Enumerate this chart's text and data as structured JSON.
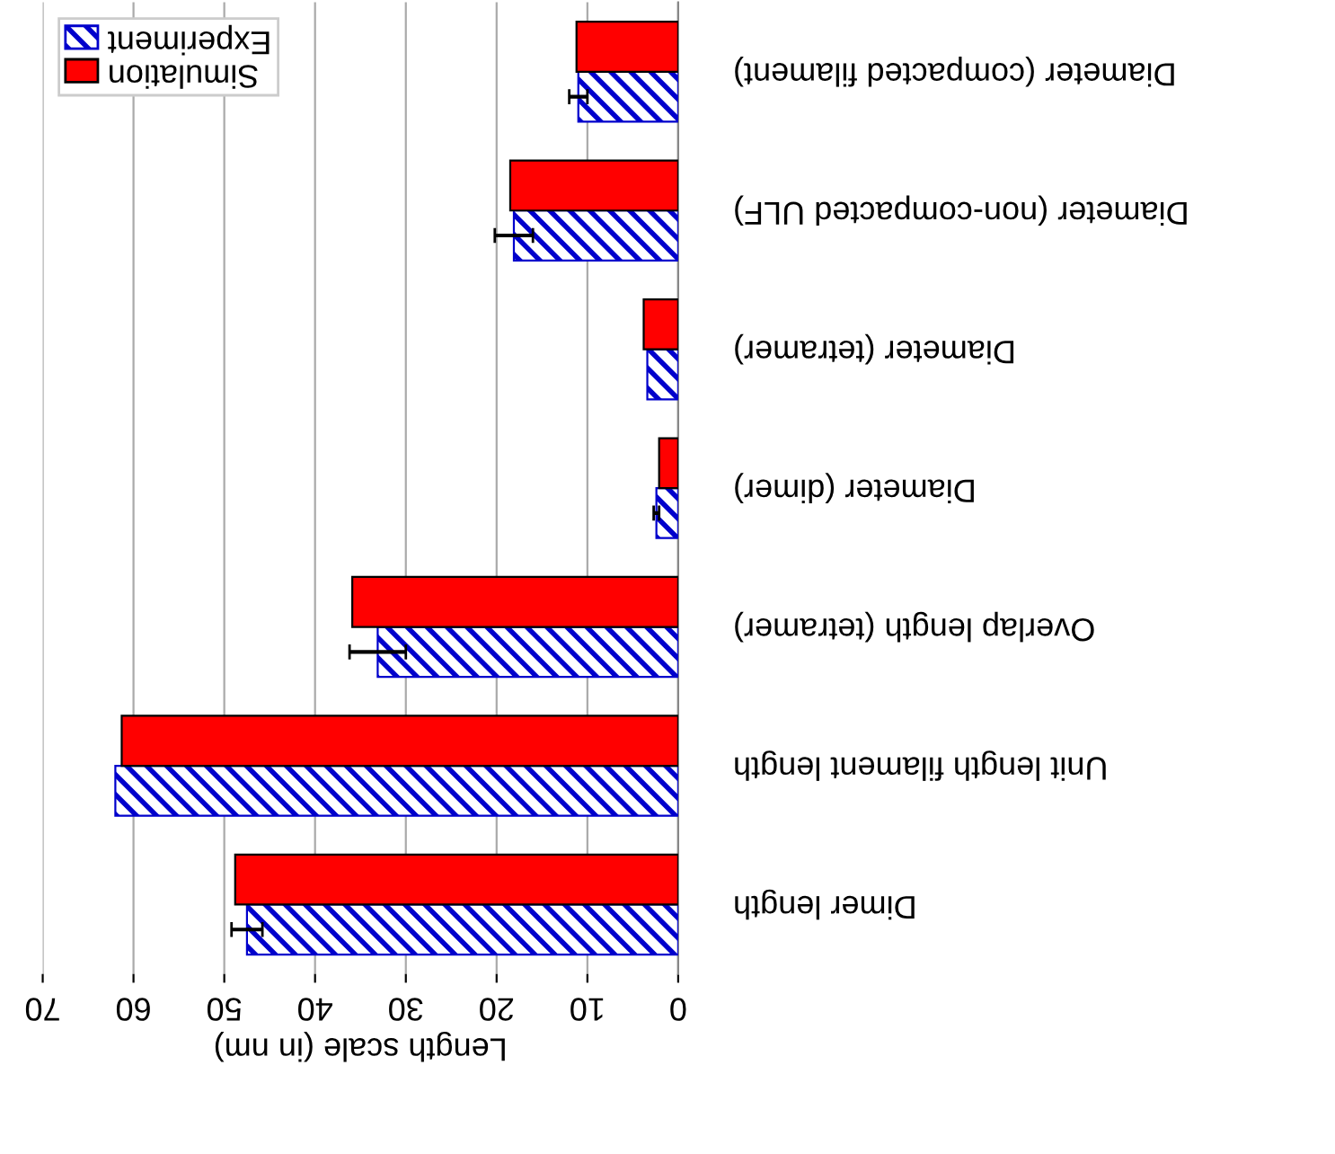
{
  "chart_data": {
    "type": "bar",
    "orientation": "horizontal",
    "xlabel": "Length scale (in nm)",
    "categories": [
      "Diameter (compacted filament)",
      "Diameter (non-compacted ULF)",
      "Diameter (tetramer)",
      "Diameter (dimer)",
      "Overlap length (tetramer)",
      "Unit length filament length",
      "Dimer length"
    ],
    "series": [
      {
        "name": "Experiment",
        "color": "#0000cc",
        "values": [
          11.0,
          18.1,
          3.4,
          2.4,
          33.1,
          62.0,
          47.5
        ],
        "errors": [
          1.0,
          2.1,
          null,
          0.3,
          3.1,
          null,
          1.7
        ]
      },
      {
        "name": "Simulation",
        "color": "#ff0000",
        "values": [
          11.2,
          18.5,
          3.8,
          2.1,
          35.9,
          61.3,
          48.8
        ]
      }
    ],
    "xlim": [
      70,
      0
    ],
    "xticks": [
      70,
      60,
      50,
      40,
      30,
      20,
      10,
      0
    ],
    "grid": "x",
    "legend": "top left"
  }
}
